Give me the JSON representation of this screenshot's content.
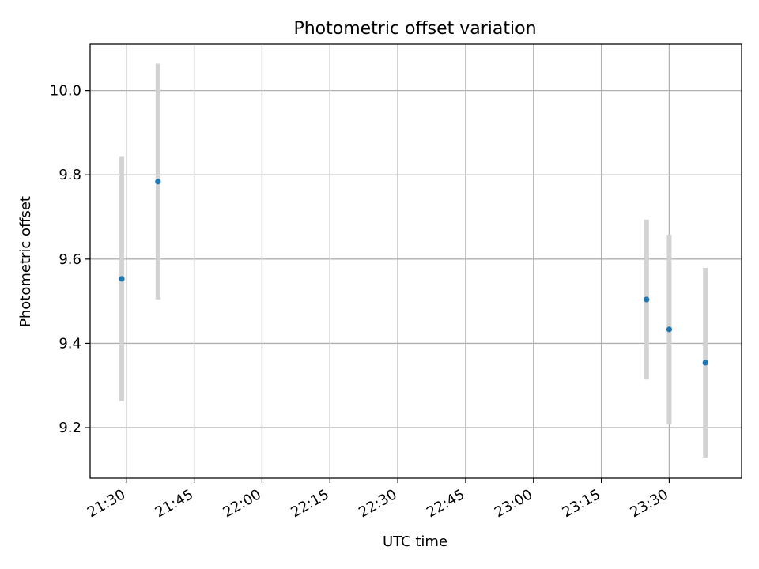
{
  "chart_data": {
    "type": "scatter",
    "title": "Photometric offset variation",
    "xlabel": "UTC time",
    "ylabel": "Photometric offset",
    "x_ticks": [
      "21:30",
      "21:45",
      "22:00",
      "22:15",
      "22:30",
      "22:45",
      "23:00",
      "23:15",
      "23:30"
    ],
    "y_ticks": [
      "9.2",
      "9.4",
      "9.6",
      "9.8",
      "10.0"
    ],
    "xlim": [
      "21:22",
      "23:46"
    ],
    "ylim": [
      9.08,
      10.11
    ],
    "grid": true,
    "points": [
      {
        "x": "21:29",
        "y": 9.553,
        "err": 0.29
      },
      {
        "x": "21:37",
        "y": 9.784,
        "err": 0.28
      },
      {
        "x": "23:25",
        "y": 9.504,
        "err": 0.19
      },
      {
        "x": "23:30",
        "y": 9.433,
        "err": 0.225
      },
      {
        "x": "23:38",
        "y": 9.354,
        "err": 0.225
      }
    ],
    "colors": {
      "marker": "#1f77b4",
      "errorbar": "#d3d3d3",
      "grid": "#b0b0b0"
    }
  }
}
